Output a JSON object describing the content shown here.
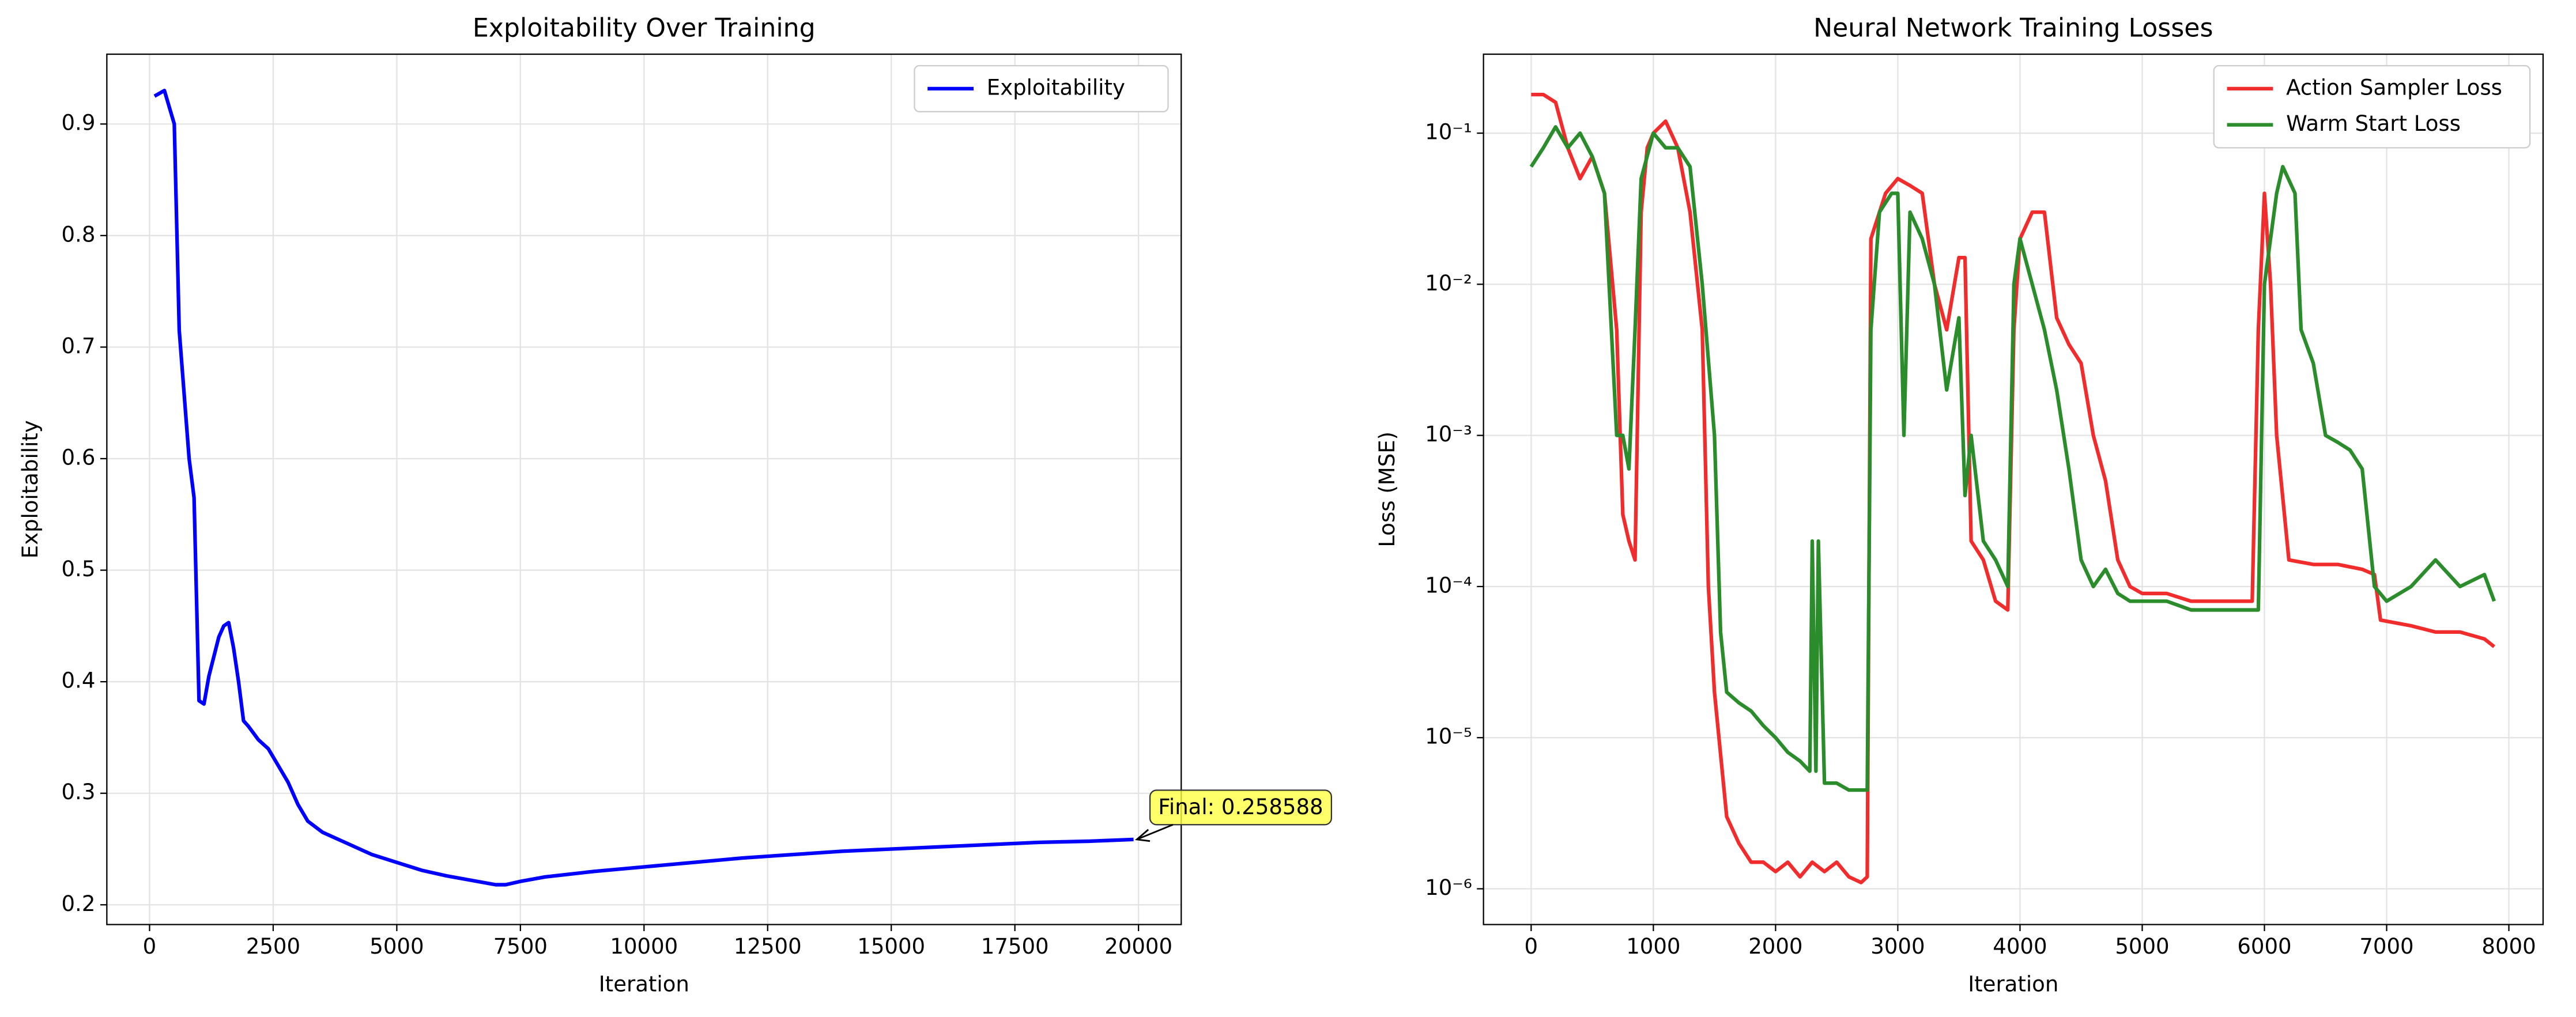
{
  "chart_data": [
    {
      "type": "line",
      "title": "Exploitability Over Training",
      "xlabel": "Iteration",
      "ylabel": "Exploitability",
      "xlim": [
        -864,
        20864
      ],
      "ylim": [
        0.1823,
        0.9626
      ],
      "xticks": [
        0,
        2500,
        5000,
        7500,
        10000,
        12500,
        15000,
        17500,
        20000
      ],
      "yticks": [
        0.2,
        0.3,
        0.4,
        0.5,
        0.6,
        0.7,
        0.8,
        0.9
      ],
      "grid": true,
      "legend": "upper right",
      "log_y": false,
      "annotation": "Final: 0.258588",
      "series": [
        {
          "name": "Exploitability",
          "color": "#0000ff",
          "x": [
            100,
            300,
            500,
            600,
            800,
            900,
            1000,
            1100,
            1200,
            1400,
            1500,
            1600,
            1700,
            1800,
            1900,
            2000,
            2200,
            2400,
            2600,
            2800,
            3000,
            3200,
            3500,
            4000,
            4500,
            5000,
            5500,
            6000,
            6500,
            7000,
            7200,
            7500,
            8000,
            9000,
            10000,
            11000,
            12000,
            13000,
            14000,
            15000,
            16000,
            17000,
            18000,
            19000,
            19900
          ],
          "values": [
            0.925,
            0.93,
            0.9,
            0.715,
            0.6,
            0.565,
            0.383,
            0.38,
            0.405,
            0.44,
            0.45,
            0.453,
            0.43,
            0.4,
            0.365,
            0.36,
            0.348,
            0.34,
            0.325,
            0.31,
            0.29,
            0.275,
            0.265,
            0.255,
            0.245,
            0.238,
            0.231,
            0.226,
            0.222,
            0.218,
            0.218,
            0.221,
            0.225,
            0.23,
            0.234,
            0.238,
            0.242,
            0.245,
            0.248,
            0.25,
            0.252,
            0.254,
            0.256,
            0.257,
            0.258588
          ]
        }
      ]
    },
    {
      "type": "line",
      "title": "Neural Network Training Losses",
      "xlabel": "Iteration",
      "ylabel": "Loss (MSE)",
      "xlim": [
        -390,
        8280
      ],
      "ylim": [
        5.8e-07,
        0.333
      ],
      "log_y": true,
      "xticks": [
        0,
        1000,
        2000,
        3000,
        4000,
        5000,
        6000,
        7000,
        8000
      ],
      "yticks": [
        {
          "value": 1e-06,
          "label": "10⁻⁶"
        },
        {
          "value": 1e-05,
          "label": "10⁻⁵"
        },
        {
          "value": 0.0001,
          "label": "10⁻⁴"
        },
        {
          "value": 0.001,
          "label": "10⁻³"
        },
        {
          "value": 0.01,
          "label": "10⁻²"
        },
        {
          "value": 0.1,
          "label": "10⁻¹"
        }
      ],
      "grid": true,
      "legend": "upper right",
      "series": [
        {
          "name": "Action Sampler Loss",
          "color": "#f02c2c",
          "x": [
            0,
            100,
            200,
            300,
            400,
            500,
            600,
            700,
            750,
            800,
            850,
            900,
            950,
            1000,
            1100,
            1200,
            1300,
            1400,
            1450,
            1500,
            1600,
            1700,
            1800,
            1900,
            2000,
            2100,
            2200,
            2300,
            2400,
            2500,
            2600,
            2700,
            2750,
            2780,
            2900,
            3000,
            3100,
            3200,
            3300,
            3400,
            3500,
            3550,
            3600,
            3700,
            3800,
            3900,
            3950,
            4000,
            4100,
            4200,
            4300,
            4400,
            4500,
            4600,
            4700,
            4800,
            4900,
            5000,
            5200,
            5400,
            5600,
            5800,
            5900,
            5950,
            6000,
            6050,
            6100,
            6200,
            6400,
            6600,
            6800,
            6900,
            6950,
            7200,
            7400,
            7600,
            7800,
            7880
          ],
          "values": [
            0.18,
            0.18,
            0.16,
            0.08,
            0.05,
            0.07,
            0.04,
            0.005,
            0.0003,
            0.0002,
            0.00015,
            0.03,
            0.08,
            0.1,
            0.12,
            0.08,
            0.03,
            0.005,
            0.0001,
            2e-05,
            3e-06,
            2e-06,
            1.5e-06,
            1.5e-06,
            1.3e-06,
            1.5e-06,
            1.2e-06,
            1.5e-06,
            1.3e-06,
            1.5e-06,
            1.2e-06,
            1.1e-06,
            1.2e-06,
            0.02,
            0.04,
            0.05,
            0.045,
            0.04,
            0.01,
            0.005,
            0.015,
            0.015,
            0.0002,
            0.00015,
            8e-05,
            7e-05,
            0.005,
            0.02,
            0.03,
            0.03,
            0.006,
            0.004,
            0.003,
            0.001,
            0.0005,
            0.00015,
            0.0001,
            9e-05,
            9e-05,
            8e-05,
            8e-05,
            8e-05,
            8e-05,
            0.005,
            0.04,
            0.01,
            0.001,
            0.00015,
            0.00014,
            0.00014,
            0.00013,
            0.00012,
            6e-05,
            5.5e-05,
            5e-05,
            5e-05,
            4.5e-05,
            4e-05
          ]
        },
        {
          "name": "Warm Start Loss",
          "color": "#2a8c2a",
          "x": [
            0,
            100,
            200,
            300,
            400,
            500,
            600,
            700,
            750,
            800,
            850,
            900,
            1000,
            1100,
            1200,
            1300,
            1400,
            1500,
            1550,
            1600,
            1700,
            1800,
            1900,
            2000,
            2100,
            2200,
            2280,
            2300,
            2330,
            2350,
            2400,
            2500,
            2600,
            2750,
            2780,
            2850,
            2950,
            3000,
            3050,
            3100,
            3200,
            3300,
            3400,
            3500,
            3550,
            3600,
            3700,
            3800,
            3900,
            3950,
            4000,
            4100,
            4200,
            4300,
            4400,
            4500,
            4600,
            4700,
            4800,
            4900,
            5000,
            5200,
            5400,
            5600,
            5800,
            5950,
            6000,
            6100,
            6150,
            6250,
            6300,
            6400,
            6500,
            6600,
            6700,
            6800,
            6900,
            7000,
            7200,
            7400,
            7600,
            7800,
            7880
          ],
          "values": [
            0.06,
            0.08,
            0.11,
            0.08,
            0.1,
            0.07,
            0.04,
            0.001,
            0.001,
            0.0006,
            0.005,
            0.05,
            0.1,
            0.08,
            0.08,
            0.06,
            0.01,
            0.001,
            5e-05,
            2e-05,
            1.7e-05,
            1.5e-05,
            1.2e-05,
            1e-05,
            8e-06,
            7e-06,
            6e-06,
            0.0002,
            6e-06,
            0.0002,
            5e-06,
            5e-06,
            4.5e-06,
            4.5e-06,
            0.005,
            0.03,
            0.04,
            0.04,
            0.001,
            0.03,
            0.02,
            0.01,
            0.002,
            0.006,
            0.0004,
            0.001,
            0.0002,
            0.00015,
            0.0001,
            0.01,
            0.02,
            0.01,
            0.005,
            0.002,
            0.0006,
            0.00015,
            0.0001,
            0.00013,
            9e-05,
            8e-05,
            8e-05,
            8e-05,
            7e-05,
            7e-05,
            7e-05,
            7e-05,
            0.01,
            0.04,
            0.06,
            0.04,
            0.005,
            0.003,
            0.001,
            0.0009,
            0.0008,
            0.0006,
            0.0001,
            8e-05,
            0.0001,
            0.00015,
            0.0001,
            0.00012,
            8e-05
          ]
        }
      ]
    }
  ]
}
